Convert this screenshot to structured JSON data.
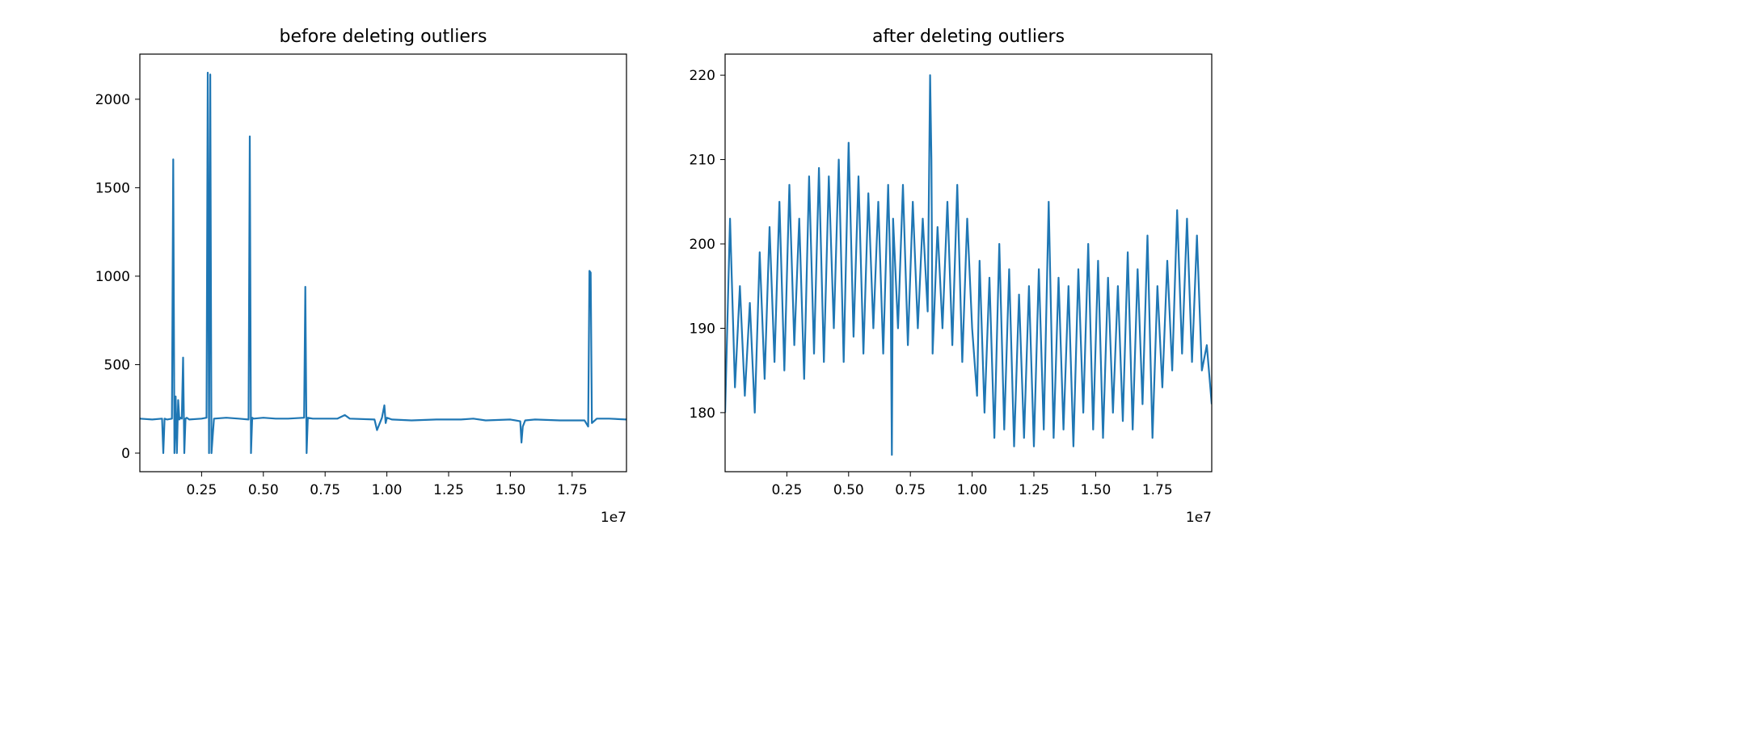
{
  "chart_data": [
    {
      "type": "line",
      "title": "before deleting outliers",
      "xlabel": "",
      "ylabel": "",
      "x_offset_label": "1e7",
      "xlim": [
        0.0,
        1.97
      ],
      "ylim": [
        -105,
        2255
      ],
      "xticks": [
        0.25,
        0.5,
        0.75,
        1.0,
        1.25,
        1.5,
        1.75
      ],
      "xtick_labels": [
        "0.25",
        "0.50",
        "0.75",
        "1.00",
        "1.25",
        "1.50",
        "1.75"
      ],
      "yticks": [
        0,
        500,
        1000,
        1500,
        2000
      ],
      "ytick_labels": [
        "0",
        "500",
        "1000",
        "1500",
        "2000"
      ],
      "grid": false,
      "series": [
        {
          "color": "#1f77b4",
          "x": [
            0.0,
            0.05,
            0.09,
            0.095,
            0.1,
            0.11,
            0.13,
            0.135,
            0.14,
            0.145,
            0.15,
            0.155,
            0.16,
            0.165,
            0.17,
            0.175,
            0.18,
            0.185,
            0.19,
            0.2,
            0.25,
            0.27,
            0.275,
            0.28,
            0.285,
            0.29,
            0.3,
            0.35,
            0.4,
            0.44,
            0.445,
            0.45,
            0.455,
            0.46,
            0.5,
            0.55,
            0.6,
            0.665,
            0.67,
            0.675,
            0.68,
            0.7,
            0.8,
            0.83,
            0.85,
            0.95,
            0.96,
            0.98,
            0.99,
            0.995,
            1.0,
            1.02,
            1.1,
            1.2,
            1.3,
            1.35,
            1.4,
            1.5,
            1.54,
            1.545,
            1.55,
            1.56,
            1.6,
            1.7,
            1.8,
            1.815,
            1.82,
            1.825,
            1.83,
            1.85,
            1.9,
            1.97
          ],
          "y": [
            195,
            190,
            195,
            0,
            195,
            190,
            195,
            1660,
            0,
            320,
            0,
            300,
            190,
            200,
            195,
            540,
            0,
            195,
            200,
            190,
            195,
            200,
            2150,
            0,
            2140,
            0,
            195,
            200,
            195,
            190,
            1790,
            0,
            200,
            195,
            200,
            195,
            195,
            200,
            940,
            0,
            200,
            195,
            195,
            215,
            195,
            190,
            130,
            200,
            270,
            170,
            200,
            190,
            185,
            190,
            190,
            195,
            185,
            190,
            180,
            60,
            150,
            185,
            190,
            185,
            185,
            150,
            1030,
            1020,
            170,
            195,
            195,
            190
          ]
        }
      ]
    },
    {
      "type": "line",
      "title": "after deleting outliers",
      "xlabel": "",
      "ylabel": "",
      "x_offset_label": "1e7",
      "xlim": [
        0.0,
        1.97
      ],
      "ylim": [
        173,
        222.5
      ],
      "xticks": [
        0.25,
        0.5,
        0.75,
        1.0,
        1.25,
        1.5,
        1.75
      ],
      "xtick_labels": [
        "0.25",
        "0.50",
        "0.75",
        "1.00",
        "1.25",
        "1.50",
        "1.75"
      ],
      "yticks": [
        180,
        190,
        200,
        210,
        220
      ],
      "ytick_labels": [
        "180",
        "190",
        "200",
        "210",
        "220"
      ],
      "grid": false,
      "series": [
        {
          "color": "#1f77b4",
          "x": [
            0.0,
            0.02,
            0.04,
            0.06,
            0.08,
            0.1,
            0.12,
            0.14,
            0.16,
            0.18,
            0.2,
            0.22,
            0.24,
            0.26,
            0.28,
            0.3,
            0.32,
            0.34,
            0.36,
            0.38,
            0.4,
            0.42,
            0.44,
            0.46,
            0.48,
            0.5,
            0.52,
            0.54,
            0.56,
            0.58,
            0.6,
            0.62,
            0.64,
            0.66,
            0.67,
            0.675,
            0.68,
            0.7,
            0.72,
            0.74,
            0.76,
            0.78,
            0.8,
            0.82,
            0.83,
            0.835,
            0.84,
            0.86,
            0.88,
            0.9,
            0.92,
            0.94,
            0.96,
            0.98,
            1.0,
            1.02,
            1.03,
            1.05,
            1.07,
            1.09,
            1.11,
            1.13,
            1.15,
            1.17,
            1.19,
            1.21,
            1.23,
            1.25,
            1.27,
            1.29,
            1.31,
            1.33,
            1.35,
            1.37,
            1.39,
            1.41,
            1.43,
            1.45,
            1.47,
            1.49,
            1.51,
            1.53,
            1.55,
            1.57,
            1.59,
            1.61,
            1.63,
            1.65,
            1.67,
            1.69,
            1.71,
            1.73,
            1.75,
            1.77,
            1.79,
            1.81,
            1.83,
            1.85,
            1.87,
            1.89,
            1.91,
            1.93,
            1.95,
            1.97
          ],
          "y": [
            180,
            203,
            183,
            195,
            182,
            193,
            180,
            199,
            184,
            202,
            186,
            205,
            185,
            207,
            188,
            203,
            184,
            208,
            187,
            209,
            186,
            208,
            190,
            210,
            186,
            212,
            189,
            208,
            187,
            206,
            190,
            205,
            187,
            207,
            196,
            175,
            203,
            190,
            207,
            188,
            205,
            190,
            203,
            192,
            220,
            210,
            187,
            202,
            190,
            205,
            188,
            207,
            186,
            203,
            190,
            182,
            198,
            180,
            196,
            177,
            200,
            178,
            197,
            176,
            194,
            177,
            195,
            176,
            197,
            178,
            205,
            177,
            196,
            178,
            195,
            176,
            197,
            180,
            200,
            178,
            198,
            177,
            196,
            180,
            195,
            179,
            199,
            178,
            197,
            181,
            201,
            177,
            195,
            183,
            198,
            185,
            204,
            187,
            203,
            186,
            201,
            185,
            188,
            181
          ]
        }
      ]
    }
  ]
}
